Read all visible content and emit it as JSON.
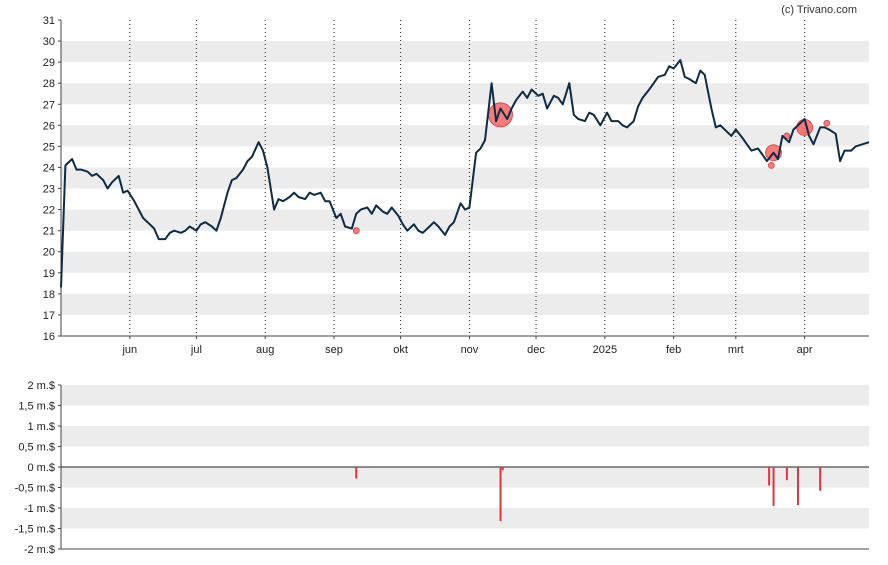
{
  "credit": "(c) Trivano.com",
  "chart_data": [
    {
      "type": "line",
      "ylim": [
        16,
        31
      ],
      "yticks": [
        16,
        17,
        18,
        19,
        20,
        21,
        22,
        23,
        24,
        25,
        26,
        27,
        28,
        29,
        30,
        31
      ],
      "x_range": [
        "2024-05-01",
        "2025-04-30"
      ],
      "xticks": [
        {
          "label": "jun",
          "date": "2024-06-01"
        },
        {
          "label": "jul",
          "date": "2024-07-01"
        },
        {
          "label": "aug",
          "date": "2024-08-01"
        },
        {
          "label": "sep",
          "date": "2024-09-01"
        },
        {
          "label": "okt",
          "date": "2024-10-01"
        },
        {
          "label": "nov",
          "date": "2024-11-01"
        },
        {
          "label": "dec",
          "date": "2024-12-01"
        },
        {
          "label": "2025",
          "date": "2025-01-01"
        },
        {
          "label": "feb",
          "date": "2025-02-01"
        },
        {
          "label": "mrt",
          "date": "2025-03-01"
        },
        {
          "label": "apr",
          "date": "2025-04-01"
        }
      ],
      "grid": {
        "vertical_dotted": true,
        "horizontal_bands": true
      },
      "colors": {
        "line": "#0d2b45",
        "marker": "#f25b5b",
        "band": "#ececec"
      },
      "series": [
        {
          "values": [
            [
              "2024-05-01",
              18.3
            ],
            [
              "2024-05-03",
              24.1
            ],
            [
              "2024-05-06",
              24.4
            ],
            [
              "2024-05-08",
              23.9
            ],
            [
              "2024-05-10",
              23.9
            ],
            [
              "2024-05-13",
              23.8
            ],
            [
              "2024-05-15",
              23.6
            ],
            [
              "2024-05-17",
              23.7
            ],
            [
              "2024-05-20",
              23.4
            ],
            [
              "2024-05-22",
              23.0
            ],
            [
              "2024-05-24",
              23.3
            ],
            [
              "2024-05-27",
              23.6
            ],
            [
              "2024-05-29",
              22.8
            ],
            [
              "2024-05-31",
              22.9
            ],
            [
              "2024-06-03",
              22.4
            ],
            [
              "2024-06-05",
              22.0
            ],
            [
              "2024-06-07",
              21.6
            ],
            [
              "2024-06-10",
              21.3
            ],
            [
              "2024-06-12",
              21.1
            ],
            [
              "2024-06-14",
              20.6
            ],
            [
              "2024-06-17",
              20.6
            ],
            [
              "2024-06-19",
              20.9
            ],
            [
              "2024-06-21",
              21.0
            ],
            [
              "2024-06-24",
              20.9
            ],
            [
              "2024-06-26",
              21.0
            ],
            [
              "2024-06-28",
              21.2
            ],
            [
              "2024-07-01",
              21.0
            ],
            [
              "2024-07-03",
              21.3
            ],
            [
              "2024-07-05",
              21.4
            ],
            [
              "2024-07-08",
              21.2
            ],
            [
              "2024-07-10",
              21.0
            ],
            [
              "2024-07-12",
              21.6
            ],
            [
              "2024-07-15",
              22.8
            ],
            [
              "2024-07-17",
              23.4
            ],
            [
              "2024-07-19",
              23.5
            ],
            [
              "2024-07-22",
              23.9
            ],
            [
              "2024-07-24",
              24.3
            ],
            [
              "2024-07-26",
              24.5
            ],
            [
              "2024-07-29",
              25.2
            ],
            [
              "2024-07-31",
              24.8
            ],
            [
              "2024-08-02",
              24.0
            ],
            [
              "2024-08-05",
              22.0
            ],
            [
              "2024-08-07",
              22.5
            ],
            [
              "2024-08-09",
              22.4
            ],
            [
              "2024-08-12",
              22.6
            ],
            [
              "2024-08-14",
              22.8
            ],
            [
              "2024-08-16",
              22.6
            ],
            [
              "2024-08-19",
              22.5
            ],
            [
              "2024-08-21",
              22.8
            ],
            [
              "2024-08-23",
              22.7
            ],
            [
              "2024-08-26",
              22.8
            ],
            [
              "2024-08-28",
              22.4
            ],
            [
              "2024-08-30",
              22.4
            ],
            [
              "2024-09-02",
              21.6
            ],
            [
              "2024-09-04",
              21.8
            ],
            [
              "2024-09-06",
              21.2
            ],
            [
              "2024-09-09",
              21.1
            ],
            [
              "2024-09-11",
              21.8
            ],
            [
              "2024-09-13",
              22.0
            ],
            [
              "2024-09-16",
              22.1
            ],
            [
              "2024-09-18",
              21.8
            ],
            [
              "2024-09-20",
              22.2
            ],
            [
              "2024-09-23",
              21.9
            ],
            [
              "2024-09-25",
              21.8
            ],
            [
              "2024-09-27",
              22.1
            ],
            [
              "2024-09-30",
              21.7
            ],
            [
              "2024-10-02",
              21.3
            ],
            [
              "2024-10-04",
              21.0
            ],
            [
              "2024-10-07",
              21.3
            ],
            [
              "2024-10-09",
              21.0
            ],
            [
              "2024-10-11",
              20.9
            ],
            [
              "2024-10-14",
              21.2
            ],
            [
              "2024-10-16",
              21.4
            ],
            [
              "2024-10-18",
              21.2
            ],
            [
              "2024-10-21",
              20.8
            ],
            [
              "2024-10-23",
              21.2
            ],
            [
              "2024-10-25",
              21.4
            ],
            [
              "2024-10-28",
              22.3
            ],
            [
              "2024-10-30",
              22.0
            ],
            [
              "2024-11-01",
              22.1
            ],
            [
              "2024-11-04",
              24.7
            ],
            [
              "2024-11-06",
              24.9
            ],
            [
              "2024-11-08",
              25.3
            ],
            [
              "2024-11-11",
              28.0
            ],
            [
              "2024-11-13",
              26.2
            ],
            [
              "2024-11-15",
              26.8
            ],
            [
              "2024-11-18",
              26.3
            ],
            [
              "2024-11-20",
              26.8
            ],
            [
              "2024-11-22",
              27.2
            ],
            [
              "2024-11-25",
              27.6
            ],
            [
              "2024-11-27",
              27.3
            ],
            [
              "2024-11-29",
              27.7
            ],
            [
              "2024-12-02",
              27.4
            ],
            [
              "2024-12-04",
              27.5
            ],
            [
              "2024-12-06",
              26.8
            ],
            [
              "2024-12-09",
              27.4
            ],
            [
              "2024-12-11",
              27.3
            ],
            [
              "2024-12-13",
              27.0
            ],
            [
              "2024-12-16",
              28.0
            ],
            [
              "2024-12-18",
              26.5
            ],
            [
              "2024-12-20",
              26.3
            ],
            [
              "2024-12-23",
              26.2
            ],
            [
              "2024-12-25",
              26.6
            ],
            [
              "2024-12-27",
              26.5
            ],
            [
              "2024-12-30",
              26.0
            ],
            [
              "2025-01-02",
              26.6
            ],
            [
              "2025-01-04",
              26.2
            ],
            [
              "2025-01-07",
              26.2
            ],
            [
              "2025-01-09",
              26.0
            ],
            [
              "2025-01-11",
              25.9
            ],
            [
              "2025-01-14",
              26.2
            ],
            [
              "2025-01-16",
              26.9
            ],
            [
              "2025-01-18",
              27.3
            ],
            [
              "2025-01-21",
              27.7
            ],
            [
              "2025-01-23",
              28.0
            ],
            [
              "2025-01-25",
              28.3
            ],
            [
              "2025-01-28",
              28.4
            ],
            [
              "2025-01-30",
              28.8
            ],
            [
              "2025-02-01",
              28.7
            ],
            [
              "2025-02-04",
              29.1
            ],
            [
              "2025-02-06",
              28.3
            ],
            [
              "2025-02-08",
              28.2
            ],
            [
              "2025-02-11",
              28.0
            ],
            [
              "2025-02-13",
              28.6
            ],
            [
              "2025-02-15",
              28.4
            ],
            [
              "2025-02-18",
              26.8
            ],
            [
              "2025-02-20",
              25.9
            ],
            [
              "2025-02-22",
              26.0
            ],
            [
              "2025-02-25",
              25.7
            ],
            [
              "2025-02-27",
              25.5
            ],
            [
              "2025-03-01",
              25.8
            ],
            [
              "2025-03-04",
              25.4
            ],
            [
              "2025-03-06",
              25.1
            ],
            [
              "2025-03-08",
              24.8
            ],
            [
              "2025-03-11",
              24.9
            ],
            [
              "2025-03-13",
              24.6
            ],
            [
              "2025-03-15",
              24.3
            ],
            [
              "2025-03-18",
              24.7
            ],
            [
              "2025-03-20",
              24.4
            ],
            [
              "2025-03-22",
              25.5
            ],
            [
              "2025-03-25",
              25.2
            ],
            [
              "2025-03-27",
              25.8
            ],
            [
              "2025-03-29",
              26.0
            ],
            [
              "2025-04-01",
              26.3
            ],
            [
              "2025-04-03",
              25.5
            ],
            [
              "2025-04-05",
              25.1
            ],
            [
              "2025-04-08",
              25.9
            ],
            [
              "2025-04-10",
              25.9
            ],
            [
              "2025-04-12",
              25.8
            ],
            [
              "2025-04-15",
              25.6
            ],
            [
              "2025-04-17",
              24.3
            ],
            [
              "2025-04-19",
              24.8
            ],
            [
              "2025-04-22",
              24.8
            ],
            [
              "2025-04-24",
              25.0
            ],
            [
              "2025-04-27",
              25.1
            ],
            [
              "2025-04-30",
              25.2
            ]
          ]
        }
      ],
      "markers": [
        {
          "date": "2024-09-11",
          "value": 21.0,
          "size": "small"
        },
        {
          "date": "2024-11-15",
          "value": 26.5,
          "size": "large"
        },
        {
          "date": "2025-03-18",
          "value": 24.7,
          "size": "medium"
        },
        {
          "date": "2025-03-17",
          "value": 24.1,
          "size": "small"
        },
        {
          "date": "2025-03-24",
          "value": 25.5,
          "size": "small"
        },
        {
          "date": "2025-04-01",
          "value": 25.9,
          "size": "medium"
        },
        {
          "date": "2025-04-11",
          "value": 26.1,
          "size": "small"
        }
      ]
    },
    {
      "type": "bar",
      "ylim": [
        -2,
        2
      ],
      "yticks": [
        {
          "value": 2,
          "label": "2 m.$"
        },
        {
          "value": 1.5,
          "label": "1,5 m.$"
        },
        {
          "value": 1,
          "label": "1 m.$"
        },
        {
          "value": 0.5,
          "label": "0,5 m.$"
        },
        {
          "value": 0,
          "label": "0 m.$"
        },
        {
          "value": -0.5,
          "label": "-0,5 m.$"
        },
        {
          "value": -1,
          "label": "-1 m.$"
        },
        {
          "value": -1.5,
          "label": "-1,5 m.$"
        },
        {
          "value": -2,
          "label": "-2 m.$"
        }
      ],
      "colors": {
        "bar": "#e8313a",
        "band": "#ececec"
      },
      "bars": [
        {
          "date": "2024-09-11",
          "value": -0.28
        },
        {
          "date": "2024-11-15",
          "value": -1.32
        },
        {
          "date": "2024-11-16",
          "value": -0.08
        },
        {
          "date": "2025-03-16",
          "value": -0.45
        },
        {
          "date": "2025-03-18",
          "value": -0.95
        },
        {
          "date": "2025-03-24",
          "value": -0.32
        },
        {
          "date": "2025-03-29",
          "value": -0.93
        },
        {
          "date": "2025-04-08",
          "value": -0.58
        }
      ]
    }
  ]
}
